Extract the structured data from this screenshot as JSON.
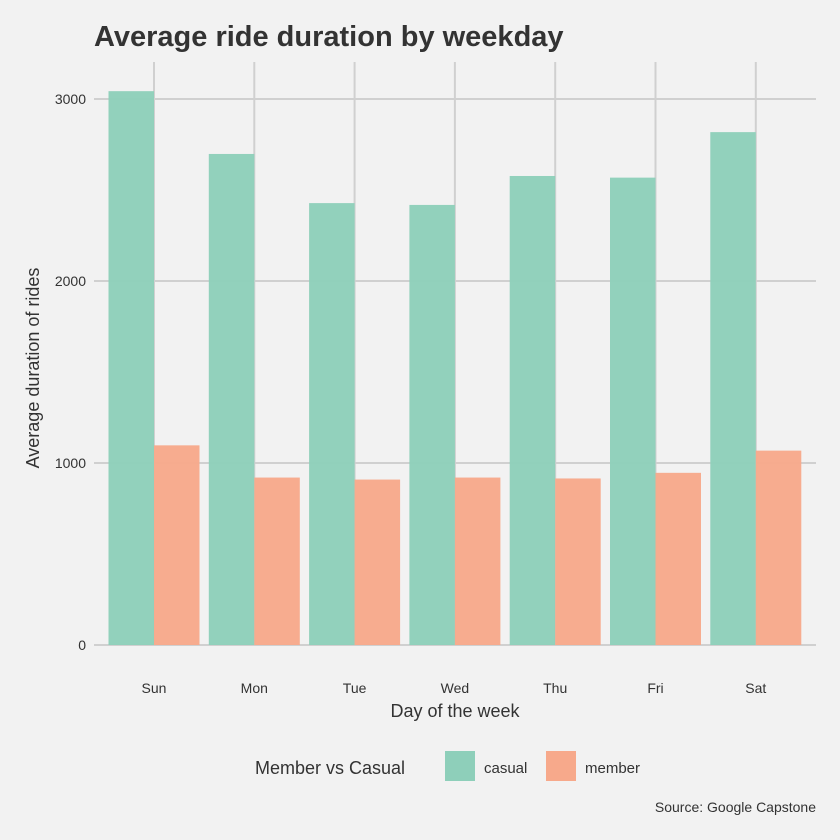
{
  "chart_data": {
    "type": "bar",
    "title": "Average ride duration by weekday",
    "xlabel": "Day of the week",
    "ylabel": "Average duration of rides",
    "categories": [
      "Sun",
      "Mon",
      "Tue",
      "Wed",
      "Thu",
      "Fri",
      "Sat"
    ],
    "series": [
      {
        "name": "casual",
        "color": "#8ecfba",
        "values": [
          3043,
          2698,
          2428,
          2418,
          2577,
          2568,
          2818
        ]
      },
      {
        "name": "member",
        "color": "#f7a98b",
        "values": [
          1097,
          920,
          909,
          920,
          915,
          946,
          1068
        ]
      }
    ],
    "ylim": [
      0,
      3200
    ],
    "y_ticks": [
      0,
      1000,
      2000,
      3000
    ],
    "y_tick_labels": [
      "0",
      "1000",
      "2000",
      "3000"
    ],
    "grid": true,
    "legend_title": "Member vs Casual",
    "legend_position": "bottom",
    "caption": "Source: Google Capstone"
  }
}
